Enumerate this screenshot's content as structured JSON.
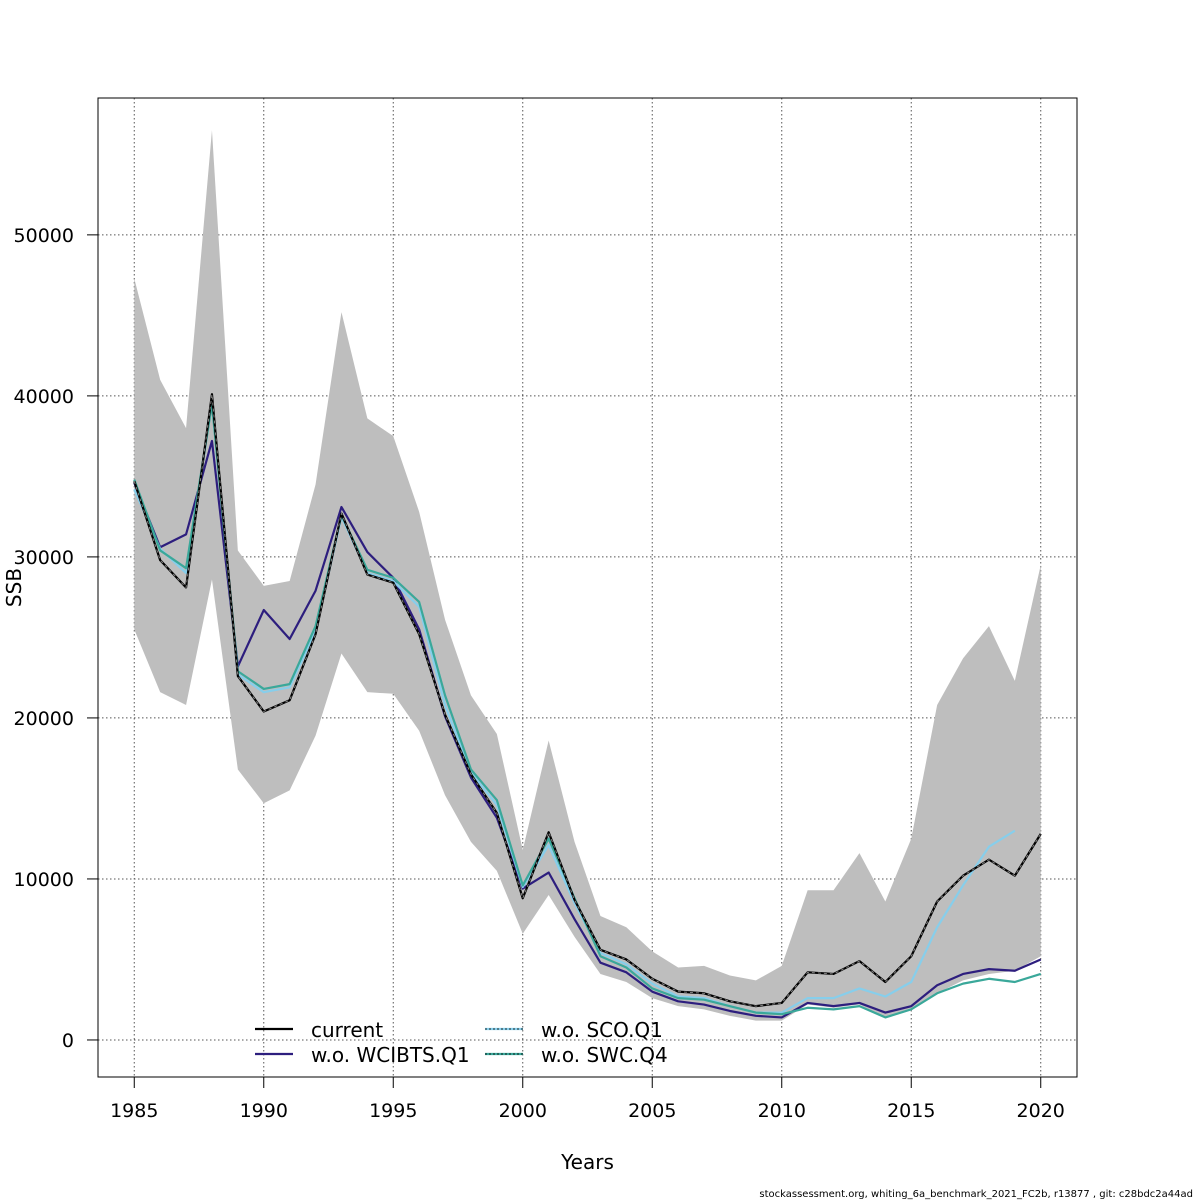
{
  "chart_data": {
    "type": "line",
    "title": "",
    "xlabel": "Years",
    "ylabel": "SSB",
    "xlim": [
      1983.6,
      2021.4
    ],
    "ylim": [
      -2300,
      58500
    ],
    "x_ticks": [
      1985,
      1990,
      1995,
      2000,
      2005,
      2010,
      2015,
      2020
    ],
    "y_ticks": [
      0,
      10000,
      20000,
      30000,
      40000,
      50000
    ],
    "grid": true,
    "legend_position": "bottom-center",
    "x": [
      1985,
      1986,
      1987,
      1988,
      1989,
      1990,
      1991,
      1992,
      1993,
      1994,
      1995,
      1996,
      1997,
      1998,
      1999,
      2000,
      2001,
      2002,
      2003,
      2004,
      2005,
      2006,
      2007,
      2008,
      2009,
      2010,
      2011,
      2012,
      2013,
      2014,
      2015,
      2016,
      2017,
      2018,
      2019,
      2020
    ],
    "band": {
      "color": "#bebebe",
      "upper": [
        47300,
        41000,
        38000,
        56500,
        30400,
        28200,
        28500,
        34500,
        45200,
        38600,
        37500,
        32800,
        26100,
        21400,
        19000,
        11800,
        18600,
        12300,
        7700,
        7000,
        5500,
        4500,
        4600,
        4000,
        3700,
        4600,
        9300,
        9300,
        11600,
        8600,
        12500,
        20800,
        23700,
        25700,
        22300,
        29500
      ],
      "lower": [
        25500,
        21600,
        20800,
        28600,
        16800,
        14700,
        15500,
        18900,
        24000,
        21600,
        21500,
        19200,
        15200,
        12300,
        10500,
        6600,
        9000,
        6400,
        4100,
        3600,
        2600,
        2100,
        1900,
        1500,
        1200,
        1200,
        2200,
        2000,
        2200,
        1400,
        1900,
        2900,
        3700,
        4100,
        4300,
        5200
      ]
    },
    "series": [
      {
        "name": "current",
        "color": "#000000",
        "style": "solid",
        "values": [
          34700,
          29800,
          28100,
          40100,
          22600,
          20400,
          21100,
          25200,
          32700,
          28900,
          28400,
          25200,
          20200,
          16500,
          14100,
          8800,
          12900,
          8700,
          5600,
          5000,
          3800,
          3000,
          2900,
          2400,
          2100,
          2300,
          4200,
          4100,
          4900,
          3600,
          5200,
          8600,
          10200,
          11200,
          10200,
          12800
        ]
      },
      {
        "name": "w.o. WCIBTS.Q1",
        "color": "#2d1e7e",
        "style": "solid",
        "values": [
          34600,
          30600,
          31400,
          37200,
          23200,
          26700,
          24900,
          27900,
          33100,
          30300,
          28700,
          25500,
          20100,
          16300,
          13800,
          9400,
          10400,
          7500,
          4800,
          4200,
          3000,
          2400,
          2200,
          1800,
          1500,
          1400,
          2300,
          2100,
          2300,
          1700,
          2100,
          3400,
          4100,
          4400,
          4300,
          5000
        ]
      },
      {
        "name": "w.o. SCO.Q1",
        "color": "#87ceeb",
        "style": "solid",
        "values": [
          34200,
          30500,
          29000,
          39600,
          22700,
          21600,
          21900,
          25400,
          32500,
          29000,
          28500,
          26900,
          20800,
          16600,
          14600,
          9500,
          12100,
          8500,
          5400,
          4700,
          3500,
          2700,
          2600,
          2100,
          1700,
          1700,
          2600,
          2600,
          3200,
          2700,
          3600,
          7000,
          9600,
          12000,
          13000,
          null
        ]
      },
      {
        "name": "w.o. SWC.Q4",
        "color": "#3aa89a",
        "style": "solid",
        "values": [
          34800,
          30400,
          29300,
          39500,
          22900,
          21800,
          22100,
          25700,
          32600,
          29200,
          28700,
          27200,
          21400,
          16800,
          14900,
          9600,
          12500,
          8800,
          5200,
          4500,
          3200,
          2600,
          2500,
          2100,
          1700,
          1600,
          2000,
          1900,
          2100,
          1400,
          1900,
          2900,
          3500,
          3800,
          3600,
          4100
        ]
      }
    ],
    "footer": "stockassessment.org, whiting_6a_benchmark_2021_FC2b, r13877 , git: c28bdc2a44ad"
  }
}
